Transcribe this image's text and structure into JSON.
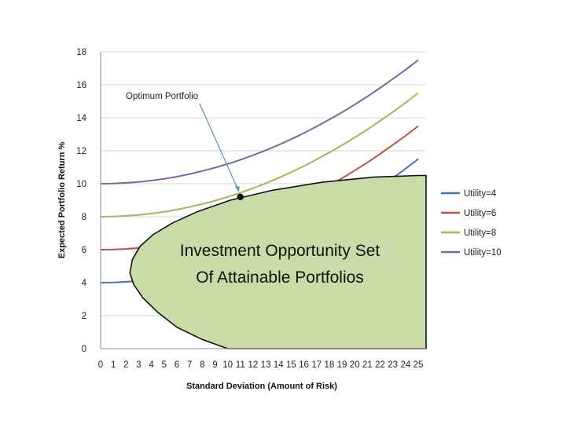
{
  "chart_data": {
    "type": "line",
    "title": "",
    "xlabel": "Standard Deviation (Amount of Risk)",
    "ylabel": "Expected  Portfolio Return %",
    "xlim": [
      0,
      25
    ],
    "ylim": [
      0,
      18
    ],
    "x_ticks": [
      0,
      1,
      2,
      3,
      4,
      5,
      6,
      7,
      8,
      9,
      10,
      11,
      12,
      13,
      14,
      15,
      16,
      17,
      18,
      19,
      20,
      21,
      22,
      23,
      24,
      25
    ],
    "y_ticks": [
      0,
      2,
      4,
      6,
      8,
      10,
      12,
      14,
      16,
      18
    ],
    "grid": "horizontal",
    "legend_position": "right",
    "x": [
      0,
      1,
      2,
      3,
      4,
      5,
      6,
      7,
      8,
      9,
      10,
      11,
      12,
      13,
      14,
      15,
      16,
      17,
      18,
      19,
      20,
      21,
      22,
      23,
      24,
      25
    ],
    "series": [
      {
        "name": "Utility=4",
        "color": "#4472C4",
        "values": [
          4.0,
          4.01,
          4.05,
          4.11,
          4.19,
          4.3,
          4.43,
          4.59,
          4.77,
          4.97,
          5.2,
          5.45,
          5.73,
          6.03,
          6.35,
          6.7,
          7.07,
          7.47,
          7.89,
          8.33,
          8.8,
          9.29,
          9.81,
          10.35,
          10.91,
          11.5
        ]
      },
      {
        "name": "Utility=6",
        "color": "#C0504D",
        "values": [
          6.0,
          6.01,
          6.05,
          6.11,
          6.19,
          6.3,
          6.43,
          6.59,
          6.77,
          6.97,
          7.2,
          7.45,
          7.73,
          8.03,
          8.35,
          8.7,
          9.07,
          9.47,
          9.89,
          10.33,
          10.8,
          11.29,
          11.81,
          12.35,
          12.91,
          13.5
        ]
      },
      {
        "name": "Utility=8",
        "color": "#9BBB59",
        "values": [
          8.0,
          8.01,
          8.05,
          8.11,
          8.19,
          8.3,
          8.43,
          8.59,
          8.77,
          8.97,
          9.2,
          9.45,
          9.73,
          10.03,
          10.35,
          10.7,
          11.07,
          11.47,
          11.89,
          12.33,
          12.8,
          13.29,
          13.81,
          14.35,
          14.91,
          15.5
        ]
      },
      {
        "name": "Utility=10",
        "color": "#8064A2",
        "values": [
          10.0,
          10.01,
          10.05,
          10.11,
          10.19,
          10.3,
          10.43,
          10.59,
          10.77,
          10.97,
          11.2,
          11.45,
          11.73,
          12.03,
          12.35,
          12.7,
          13.07,
          13.47,
          13.89,
          14.33,
          14.8,
          15.29,
          15.81,
          16.35,
          16.91,
          17.5
        ]
      }
    ],
    "opportunity_set": {
      "label_line1": "Investment Opportunity Set",
      "label_line2": "Of Attainable Portfolios",
      "fill_color": "#C9DCA8",
      "boundary_x": [
        10,
        8,
        6,
        4.5,
        3.3,
        2.6,
        2.3,
        2.5,
        3.1,
        4.1,
        5.6,
        7.6,
        10.2,
        13.5,
        17.5,
        21.5,
        25
      ],
      "boundary_y": [
        0,
        0.55,
        1.3,
        2.2,
        3.1,
        3.9,
        4.6,
        5.4,
        6.2,
        6.9,
        7.6,
        8.3,
        9.0,
        9.6,
        10.1,
        10.4,
        10.5
      ]
    },
    "annotation": {
      "text": "Optimum Portfolio",
      "point": [
        11,
        9.2
      ]
    }
  }
}
